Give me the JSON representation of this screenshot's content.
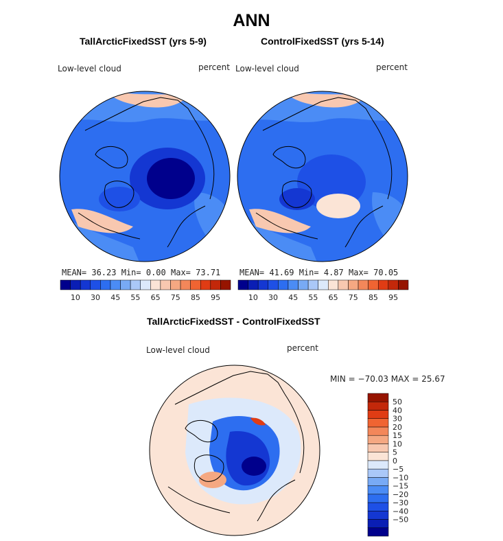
{
  "figure": {
    "title": "ANN",
    "variable": "Low-level cloud",
    "units": "percent"
  },
  "colors": {
    "abs_scale": [
      "#00008c",
      "#0a1eb4",
      "#1437d2",
      "#1e50e6",
      "#2d6ef0",
      "#4b8cf5",
      "#78aaf5",
      "#aac8f8",
      "#dce9fb",
      "#fbe4d6",
      "#f8c8b0",
      "#f5a882",
      "#f3875a",
      "#f06432",
      "#e03c14",
      "#c3280a",
      "#961400"
    ],
    "diff_scale": [
      "#00008c",
      "#0a1eb4",
      "#1437d2",
      "#1e50e6",
      "#2d6ef0",
      "#4b8cf5",
      "#78aaf5",
      "#aac8f8",
      "#dce9fb",
      "#fbe4d6",
      "#f8c8b0",
      "#f5a882",
      "#f3875a",
      "#f06432",
      "#e03c14",
      "#c3280a",
      "#961400"
    ],
    "land_outline": "#000000"
  },
  "chart_data": [
    {
      "type": "heatmap",
      "projection": "north-polar-stereographic",
      "title": "TallArcticFixedSST (yrs 5-9)",
      "label": "Low-level cloud",
      "units": "percent",
      "stats": {
        "mean_label": "MEAN=",
        "mean": "36.23",
        "min_label": "Min=",
        "min": "0.00",
        "max_label": "Max=",
        "max": "73.71"
      },
      "colorbar_ticks": [
        "10",
        "30",
        "45",
        "55",
        "65",
        "75",
        "85",
        "95"
      ]
    },
    {
      "type": "heatmap",
      "projection": "north-polar-stereographic",
      "title": "ControlFixedSST (yrs 5-14)",
      "label": "Low-level cloud",
      "units": "percent",
      "stats": {
        "mean_label": "MEAN=",
        "mean": "41.69",
        "min_label": "Min=",
        "min": "4.87",
        "max_label": "Max=",
        "max": "70.05"
      },
      "colorbar_ticks": [
        "10",
        "30",
        "45",
        "55",
        "65",
        "75",
        "85",
        "95"
      ]
    },
    {
      "type": "heatmap",
      "projection": "north-polar-stereographic",
      "title": "TallArcticFixedSST - ControlFixedSST",
      "label": "Low-level cloud",
      "units": "percent",
      "stats_text": "MIN = −70.03 MAX =  25.67",
      "colorbar_levels": [
        "50",
        "40",
        "30",
        "20",
        "15",
        "10",
        "5",
        "0",
        "−5",
        "−10",
        "−15",
        "−20",
        "−30",
        "−40",
        "−50"
      ]
    }
  ]
}
